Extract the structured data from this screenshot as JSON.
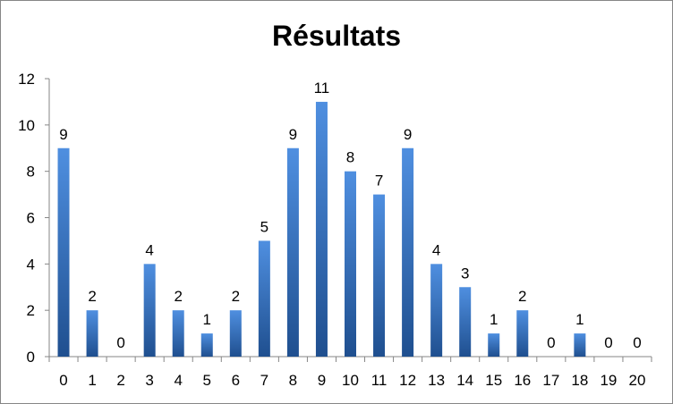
{
  "chart_data": {
    "type": "bar",
    "title": "Résultats",
    "xlabel": "",
    "ylabel": "",
    "categories": [
      "0",
      "1",
      "2",
      "3",
      "4",
      "5",
      "6",
      "7",
      "8",
      "9",
      "10",
      "11",
      "12",
      "13",
      "14",
      "15",
      "16",
      "17",
      "18",
      "19",
      "20"
    ],
    "values": [
      9,
      2,
      0,
      4,
      2,
      1,
      2,
      5,
      9,
      11,
      8,
      7,
      9,
      4,
      3,
      1,
      2,
      0,
      1,
      0,
      0
    ],
    "ylim": [
      0,
      12
    ],
    "yticks": [
      0,
      2,
      4,
      6,
      8,
      10,
      12
    ],
    "grid": false,
    "legend": "none",
    "data_labels": true,
    "bar_color_top": "#4f8fe0",
    "bar_color_bottom": "#1f4f8f"
  }
}
